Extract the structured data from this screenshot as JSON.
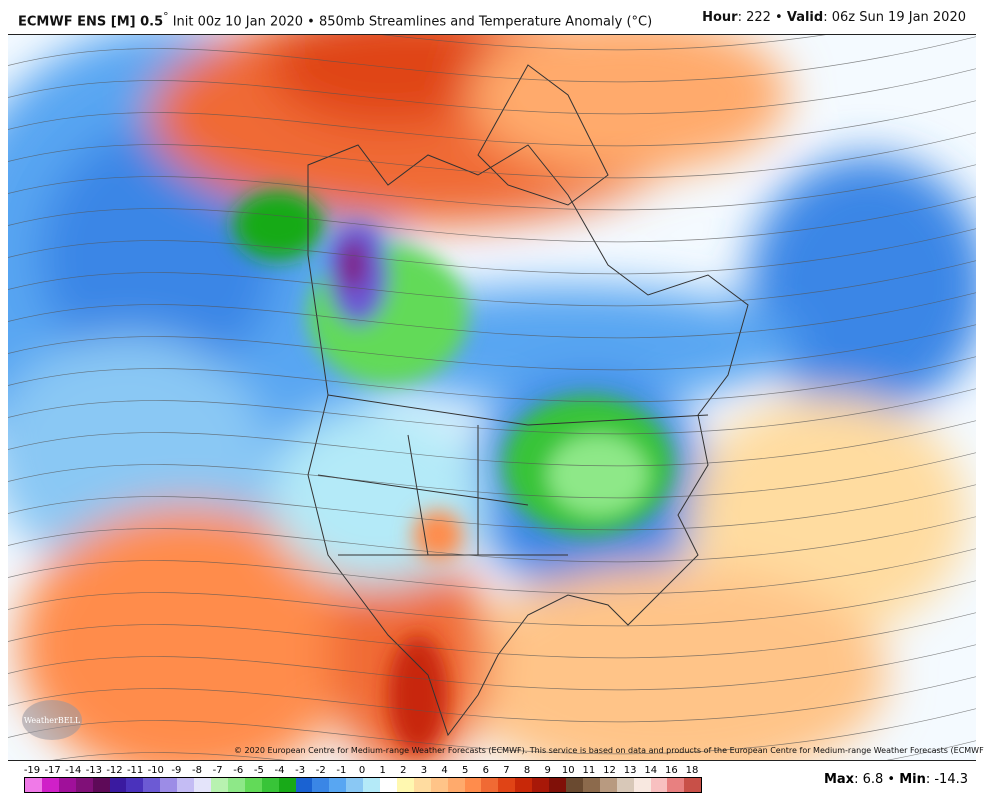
{
  "header": {
    "model": "ECMWF ENS [M] 0.5",
    "degree": "°",
    "init": " Init 00z 10 Jan 2020 • 850mb Streamlines and Temperature Anomaly (°C)",
    "hour_label": "Hour",
    "hour": ": 222 • ",
    "valid_label": "Valid",
    "valid": ": 06z Sun 19 Jan 2020"
  },
  "copyright": "© 2020 European Centre for Medium-range Weather Forecasts (ECMWF). This service is based on data and products of the European Centre for Medium-range Weather Forecasts (ECMWF).",
  "logo": "WeatherBELL",
  "stats": {
    "max_label": "Max",
    "max": ": 6.8 • ",
    "min_label": "Min",
    "min": ": -14.3"
  },
  "colorbar": {
    "labels": [
      "-19",
      "-17",
      "-14",
      "-13",
      "-12",
      "-11",
      "-10",
      "-9",
      "-8",
      "-7",
      "-6",
      "-5",
      "-4",
      "-3",
      "-2",
      "-1",
      "0",
      "1",
      "2",
      "3",
      "4",
      "5",
      "6",
      "7",
      "8",
      "9",
      "10",
      "11",
      "12",
      "13",
      "14",
      "16",
      "18"
    ],
    "colors": [
      "#f07ae8",
      "#d020c8",
      "#a0109a",
      "#801078",
      "#5e0a58",
      "#3a1aa0",
      "#4a32bc",
      "#6c5ad4",
      "#9c8ce6",
      "#c4bcf4",
      "#e4e4fa",
      "#b8f2b0",
      "#8ee888",
      "#62da58",
      "#38c438",
      "#18aa18",
      "#1a62d2",
      "#3a86e6",
      "#58a6f2",
      "#8ac8f4",
      "#b4eaf8",
      "#ffffff",
      "#fff8b0",
      "#ffdca0",
      "#ffc488",
      "#ffaa6c",
      "#ff8c4c",
      "#f06a34",
      "#e04416",
      "#c82808",
      "#a81808",
      "#801008",
      "#6a4a30",
      "#8c6a4c",
      "#b89a80",
      "#d8c8b8",
      "#f8e8e0",
      "#f8c0c0",
      "#e88080",
      "#c85048"
    ]
  }
}
